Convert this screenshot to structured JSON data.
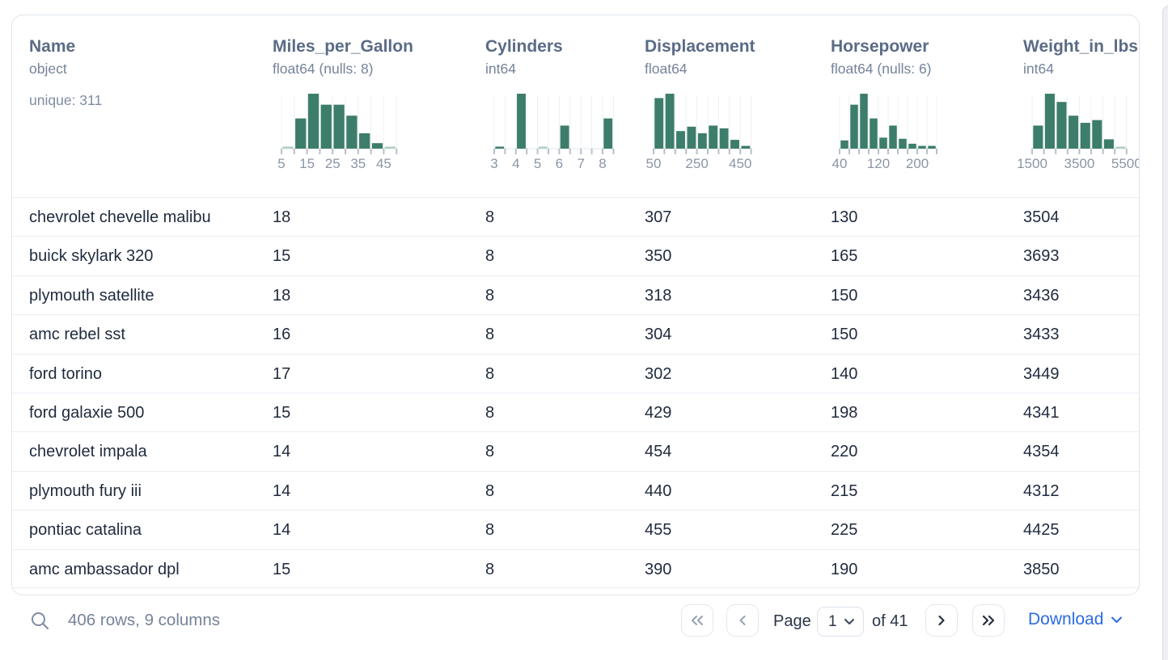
{
  "columns": [
    {
      "name": "Name",
      "type": "object",
      "extra": "unique: 311",
      "histogram": null
    },
    {
      "name": "Miles_per_Gallon",
      "type": "float64 (nulls: 8)",
      "histogram": {
        "type": "bar",
        "bins": [
          0.02,
          0.55,
          1.0,
          0.8,
          0.8,
          0.6,
          0.28,
          0.1,
          0.02
        ],
        "pale_bins": [
          0,
          8
        ],
        "tick_labels": [
          {
            "text": "5",
            "edge": 0
          },
          {
            "text": "15",
            "edge": 2
          },
          {
            "text": "25",
            "edge": 4
          },
          {
            "text": "35",
            "edge": 6
          },
          {
            "text": "45",
            "edge": 8
          }
        ]
      }
    },
    {
      "name": "Cylinders",
      "type": "int64",
      "histogram": {
        "type": "bar",
        "bins": [
          0.03,
          0,
          1.0,
          0,
          0.03,
          0,
          0.42,
          0,
          0,
          0,
          0.55
        ],
        "pale_bins": [
          4
        ],
        "tick_labels": [
          {
            "text": "3",
            "edge": 0
          },
          {
            "text": "4",
            "edge": 2
          },
          {
            "text": "5",
            "edge": 4
          },
          {
            "text": "6",
            "edge": 6
          },
          {
            "text": "7",
            "edge": 8
          },
          {
            "text": "8",
            "edge": 10
          }
        ]
      }
    },
    {
      "name": "Displacement",
      "type": "float64",
      "histogram": {
        "type": "bar",
        "bins": [
          0.92,
          1.0,
          0.32,
          0.4,
          0.28,
          0.42,
          0.37,
          0.16,
          0.05
        ],
        "pale_bins": [],
        "tick_labels": [
          {
            "text": "50",
            "edge": 0
          },
          {
            "text": "250",
            "edge": 4
          },
          {
            "text": "450",
            "edge": 8
          }
        ]
      }
    },
    {
      "name": "Horsepower",
      "type": "float64 (nulls: 6)",
      "histogram": {
        "type": "bar",
        "bins": [
          0.15,
          0.8,
          1.0,
          0.55,
          0.2,
          0.42,
          0.18,
          0.09,
          0.05,
          0.05
        ],
        "pale_bins": [],
        "tick_labels": [
          {
            "text": "40",
            "edge": 0
          },
          {
            "text": "120",
            "edge": 4
          },
          {
            "text": "200",
            "edge": 8
          }
        ]
      }
    },
    {
      "name": "Weight_in_lbs",
      "type": "int64",
      "histogram": {
        "type": "bar",
        "bins": [
          0.42,
          1.0,
          0.85,
          0.6,
          0.47,
          0.52,
          0.17,
          0.02
        ],
        "pale_bins": [
          7
        ],
        "tick_labels": [
          {
            "text": "1500",
            "edge": 0
          },
          {
            "text": "3500",
            "edge": 4
          },
          {
            "text": "5500",
            "edge": 8
          }
        ]
      }
    }
  ],
  "table": {
    "rows": [
      [
        "chevrolet chevelle malibu",
        "18",
        "8",
        "307",
        "130",
        "3504"
      ],
      [
        "buick skylark 320",
        "15",
        "8",
        "350",
        "165",
        "3693"
      ],
      [
        "plymouth satellite",
        "18",
        "8",
        "318",
        "150",
        "3436"
      ],
      [
        "amc rebel sst",
        "16",
        "8",
        "304",
        "150",
        "3433"
      ],
      [
        "ford torino",
        "17",
        "8",
        "302",
        "140",
        "3449"
      ],
      [
        "ford galaxie 500",
        "15",
        "8",
        "429",
        "198",
        "4341"
      ],
      [
        "chevrolet impala",
        "14",
        "8",
        "454",
        "220",
        "4354"
      ],
      [
        "plymouth fury iii",
        "14",
        "8",
        "440",
        "215",
        "4312"
      ],
      [
        "pontiac catalina",
        "14",
        "8",
        "455",
        "225",
        "4425"
      ],
      [
        "amc ambassador dpl",
        "15",
        "8",
        "390",
        "190",
        "3850"
      ]
    ]
  },
  "footer": {
    "status": "406 rows, 9 columns",
    "page_label": "Page",
    "page_value": "1",
    "of_label": "of 41",
    "download_label": "Download"
  },
  "icons": [
    "search-icon",
    "chevron-double-left-icon",
    "chevron-left-icon",
    "chevron-down-icon",
    "chevron-right-icon",
    "chevron-double-right-icon",
    "download-chevron-icon"
  ],
  "colors": {
    "hist_bar": "#3d7d6b",
    "hist_bar_pale": "#aecdc2",
    "hist_grid": "#edf0f3",
    "hist_tick": "#b7c0ca",
    "hist_baseline": "#e3e8ed",
    "accent_blue": "#2c6be3",
    "title_text": "#5a6b86",
    "body_text": "#1f2a3d",
    "muted_text": "#76839a",
    "border": "#dfe5ec"
  }
}
